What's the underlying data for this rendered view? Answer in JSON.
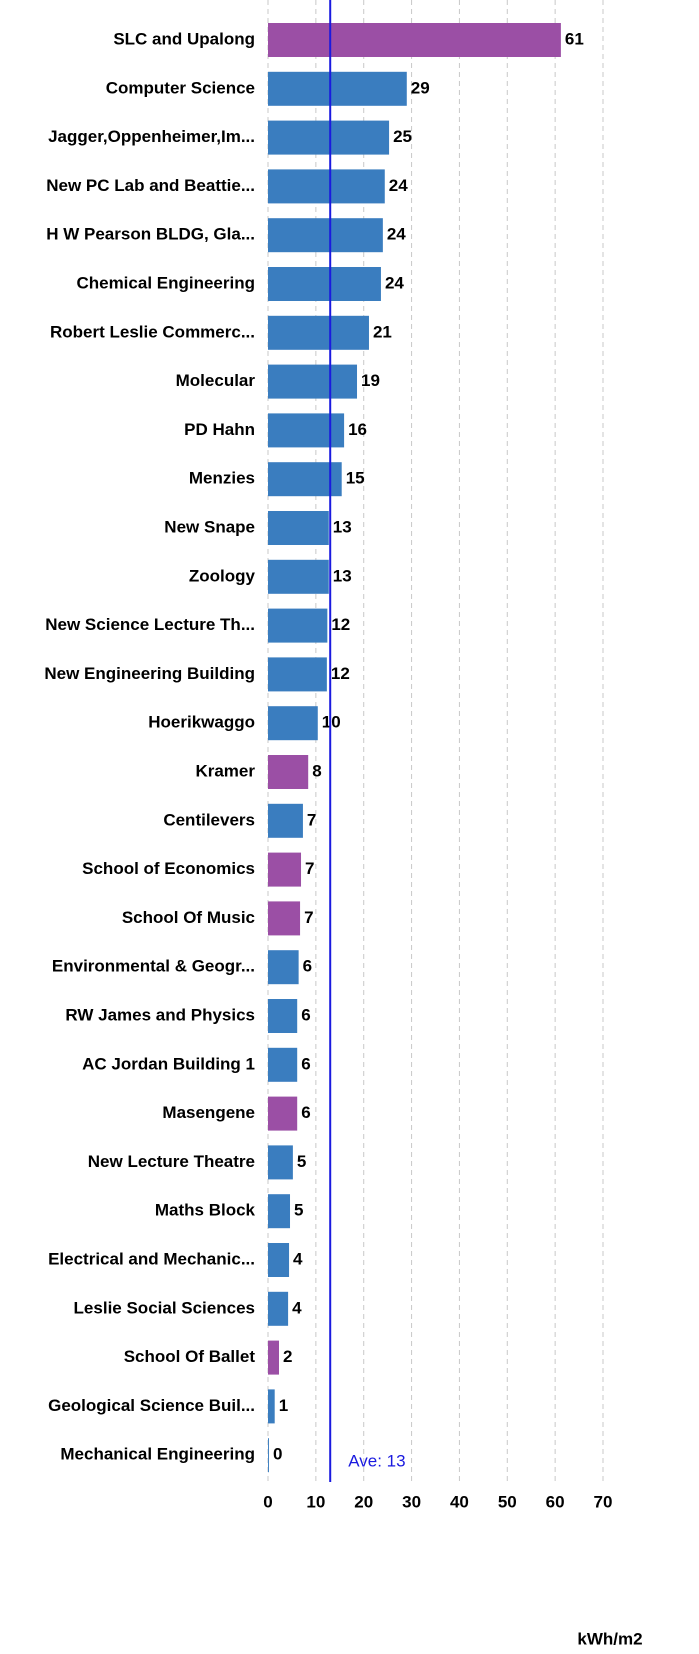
{
  "chart_data": {
    "type": "barh",
    "categories": [
      "SLC and Upalong",
      "Computer Science",
      "Jagger,Oppenheimer,Im...",
      "New PC Lab and Beattie...",
      "H W Pearson BLDG, Gla...",
      "Chemical Engineering",
      "Robert Leslie Commerc...",
      "Molecular",
      "PD Hahn",
      "Menzies",
      "New Snape",
      "Zoology",
      "New Science Lecture Th...",
      "New Engineering Building",
      "Hoerikwaggo",
      "Kramer",
      "Centilevers",
      "School of Economics",
      "School Of Music",
      "Environmental & Geogr...",
      "RW James and Physics",
      "AC Jordan Building 1",
      "Masengene",
      "New Lecture Theatre",
      "Maths Block",
      "Electrical and Mechanic...",
      "Leslie Social Sciences",
      "School Of Ballet",
      "Geological Science Buil...",
      "Mechanical Engineering"
    ],
    "values": [
      61.2,
      29.0,
      25.3,
      24.4,
      24.0,
      23.6,
      21.1,
      18.6,
      15.9,
      15.4,
      12.7,
      12.7,
      12.4,
      12.3,
      10.4,
      8.4,
      7.3,
      6.9,
      6.7,
      6.4,
      6.1,
      6.1,
      6.1,
      5.2,
      4.6,
      4.4,
      4.2,
      2.3,
      1.4,
      0.2
    ],
    "value_labels": [
      "61",
      "29",
      "25",
      "24",
      "24",
      "24",
      "21",
      "19",
      "16",
      "15",
      "13",
      "13",
      "12",
      "12",
      "10",
      "8",
      "7",
      "7",
      "7",
      "6",
      "6",
      "6",
      "6",
      "5",
      "5",
      "4",
      "4",
      "2",
      "1",
      "0"
    ],
    "colors": [
      "#9b4fa5",
      "#3a7dbf",
      "#3a7dbf",
      "#3a7dbf",
      "#3a7dbf",
      "#3a7dbf",
      "#3a7dbf",
      "#3a7dbf",
      "#3a7dbf",
      "#3a7dbf",
      "#3a7dbf",
      "#3a7dbf",
      "#3a7dbf",
      "#3a7dbf",
      "#3a7dbf",
      "#9b4fa5",
      "#3a7dbf",
      "#9b4fa5",
      "#9b4fa5",
      "#3a7dbf",
      "#3a7dbf",
      "#3a7dbf",
      "#9b4fa5",
      "#3a7dbf",
      "#3a7dbf",
      "#3a7dbf",
      "#3a7dbf",
      "#9b4fa5",
      "#3a7dbf",
      "#3a7dbf"
    ],
    "xlim": [
      0,
      70
    ],
    "xticks": [
      0,
      10,
      20,
      30,
      40,
      50,
      60,
      70
    ],
    "grid": true,
    "xlabel": "kWh/m2",
    "average": {
      "value": 13,
      "label": "Ave: 13",
      "color": "#1a1adf"
    }
  }
}
